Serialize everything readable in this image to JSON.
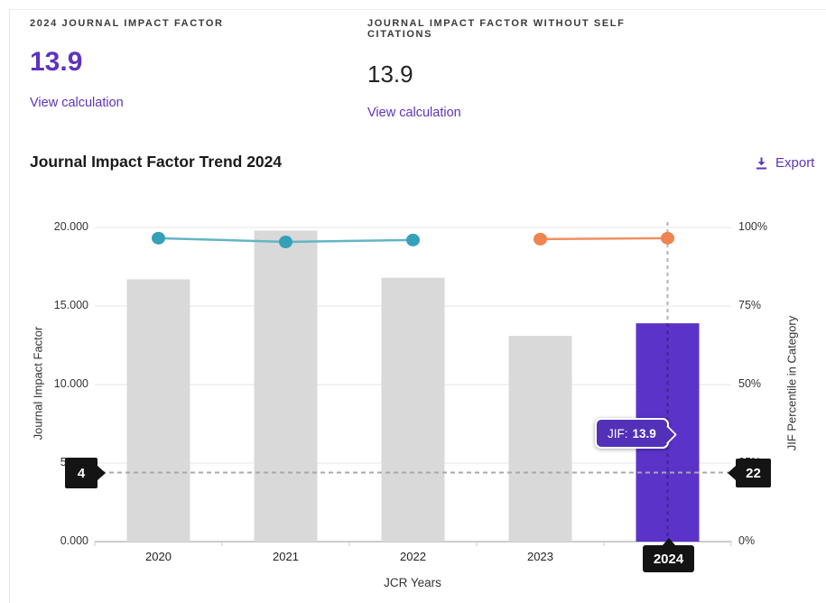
{
  "metrics": [
    {
      "label": "2024 JOURNAL IMPACT FACTOR",
      "value": "13.9",
      "link": "View calculation",
      "value_color": "#5e33bf"
    },
    {
      "label": "JOURNAL IMPACT FACTOR WITHOUT SELF CITATIONS",
      "value": "13.9",
      "link": "View calculation",
      "value_color": "#222222"
    }
  ],
  "trend": {
    "title": "Journal Impact Factor Trend 2024",
    "export_label": "Export"
  },
  "theme": {
    "accent_purple": "#5e33bf",
    "bar_gray": "#d9d9d9",
    "bar_highlight": "#5b33c9",
    "teal": "#35a1b9",
    "teal_line": "#63b5c5",
    "orange": "#ef8450",
    "orange_line": "#f18f62",
    "marker_black": "#141414",
    "gridline": "#e4e4e4"
  },
  "chart_data": {
    "type": "bar",
    "subtype": "combo-bar-line",
    "title": "Journal Impact Factor Trend 2024",
    "categories": [
      "2020",
      "2021",
      "2022",
      "2023",
      "2024"
    ],
    "series": [
      {
        "name": "Journal Impact Factor",
        "type": "bar",
        "axis": "left",
        "values": [
          16.7,
          19.8,
          16.8,
          13.1,
          13.9
        ],
        "highlight_index": 4
      },
      {
        "name": "JIF Percentile in Category",
        "type": "line",
        "axis": "right",
        "values": [
          96.6,
          95.4,
          96.0,
          96.3,
          96.6
        ],
        "segments": [
          {
            "indices": [
              0,
              1,
              2
            ],
            "color_key": "teal"
          },
          {
            "indices": [
              3,
              4
            ],
            "color_key": "orange"
          }
        ]
      }
    ],
    "left_axis": {
      "title": "Journal Impact Factor",
      "min": 0,
      "max": 20,
      "ticks": [
        "0.000",
        "5.000",
        "10.000",
        "15.000",
        "20.000"
      ]
    },
    "right_axis": {
      "title": "JIF Percentile in Category",
      "min": 0,
      "max": 100,
      "ticks": [
        "0%",
        "25%",
        "50%",
        "75%",
        "100%"
      ]
    },
    "x_axis": {
      "title": "JCR Years"
    },
    "grid": true,
    "annotations": {
      "h_line": {
        "right_axis_value": 22,
        "left_marker": "4",
        "right_marker": "22"
      },
      "v_line": {
        "category": "2024",
        "marker": "2024"
      },
      "tooltip": {
        "label": "JIF:",
        "value": "13.9"
      }
    }
  }
}
